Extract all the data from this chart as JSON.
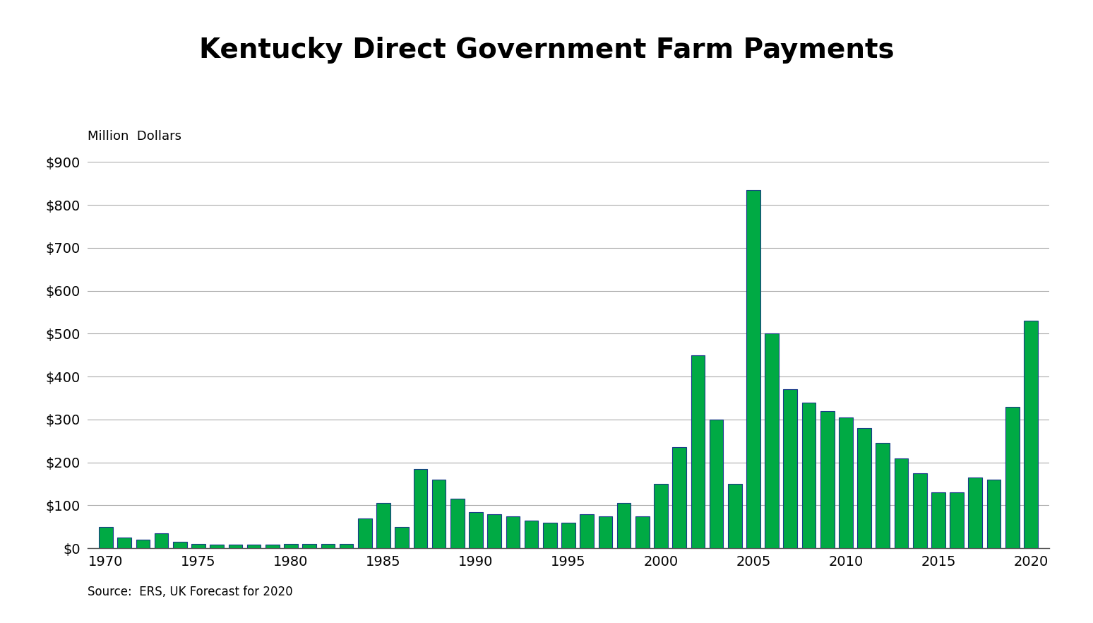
{
  "title": "Kentucky Direct Government Farm Payments",
  "ylabel": "Million  Dollars",
  "source": "Source:  ERS, UK Forecast for 2020",
  "ylim": [
    0,
    900
  ],
  "yticks": [
    0,
    100,
    200,
    300,
    400,
    500,
    600,
    700,
    800,
    900
  ],
  "years": [
    1970,
    1971,
    1972,
    1973,
    1974,
    1975,
    1976,
    1977,
    1978,
    1979,
    1980,
    1981,
    1982,
    1983,
    1984,
    1985,
    1986,
    1987,
    1988,
    1989,
    1990,
    1991,
    1992,
    1993,
    1994,
    1995,
    1996,
    1997,
    1998,
    1999,
    2000,
    2001,
    2002,
    2003,
    2004,
    2005,
    2006,
    2007,
    2008,
    2009,
    2010,
    2011,
    2012,
    2013,
    2014,
    2015,
    2016,
    2017,
    2018,
    2019,
    2020
  ],
  "values": [
    50,
    25,
    20,
    35,
    15,
    10,
    8,
    8,
    8,
    8,
    10,
    10,
    10,
    10,
    70,
    105,
    50,
    185,
    160,
    115,
    85,
    80,
    75,
    65,
    60,
    60,
    80,
    75,
    105,
    75,
    150,
    235,
    450,
    300,
    150,
    835,
    500,
    370,
    340,
    320,
    305,
    280,
    245,
    210,
    175,
    130,
    130,
    165,
    160,
    330,
    530
  ],
  "bar_color": "#00aa44",
  "bar_edge_color": "#1a3a8a",
  "background_color": "#ffffff",
  "title_fontsize": 28,
  "label_fontsize": 13,
  "tick_fontsize": 14,
  "source_fontsize": 12
}
